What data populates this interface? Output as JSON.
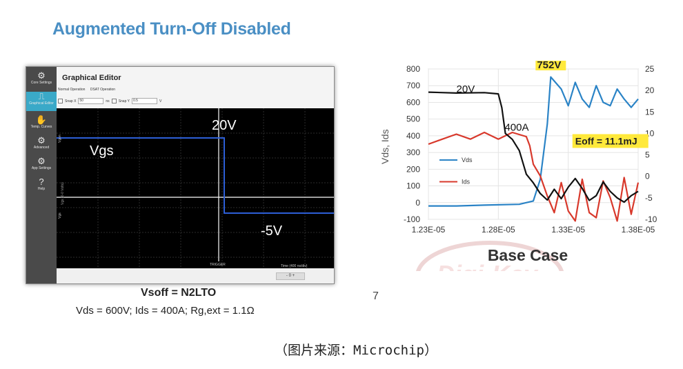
{
  "slide": {
    "title": "Augmented Turn-Off Disabled",
    "caption_main": "Vsoff = N2LTO",
    "caption_sub": "Vds = 600V; Ids = 400A; Rg,ext = 1.1Ω",
    "page_number": "7",
    "source_note": "（图片来源：Microchip）"
  },
  "editor": {
    "title": "Graphical Editor",
    "sidebar": [
      {
        "icon": "gear-icon",
        "glyph": "⚙",
        "label": "Core Settings"
      },
      {
        "icon": "waveform-icon",
        "glyph": "⎍",
        "label": "Graphical Editor",
        "active": true
      },
      {
        "icon": "curves-icon",
        "glyph": "✋",
        "label": "Temp. Curves"
      },
      {
        "icon": "advanced-icon",
        "glyph": "⚙",
        "label": "Advanced"
      },
      {
        "icon": "app-settings-icon",
        "glyph": "⚙",
        "label": "App Settings"
      },
      {
        "icon": "help-icon",
        "glyph": "?",
        "label": "Help"
      }
    ],
    "tabs": [
      "Normal Operation",
      "DSAT Operation"
    ],
    "snap_x_label": "Snap X",
    "snap_x_value": "50",
    "snap_x_unit": "ns",
    "snap_y_label": "Snap Y",
    "snap_y_value": "0.5",
    "snap_y_unit": "V",
    "plot": {
      "y_axis_label": "Vgs (0-0 Volts)",
      "y_tick_top": "Vgon",
      "y_tick_bottom": "Vgs",
      "trigger_label": "TRIGGER",
      "x_axis_label": "Time (400 ns/div)",
      "label_vgs": "Vgs",
      "label_high": "20V",
      "label_low": "-5V",
      "high_level_v": 20,
      "low_level_v": -5
    },
    "footer_control": "- 0 +"
  },
  "chart_data": {
    "type": "line",
    "title": "Base Case",
    "ylabel_left": "Vds, Ids",
    "x_ticks": [
      "1.23E-05",
      "1.28E-05",
      "1.33E-05",
      "1.38E-05"
    ],
    "xlim": [
      1.23e-05,
      1.38e-05
    ],
    "ylim_left": [
      -100,
      800
    ],
    "ylim_right": [
      -10,
      25
    ],
    "y_ticks_left": [
      "800",
      "700",
      "600",
      "500",
      "400",
      "300",
      "200",
      "100",
      "0",
      "-100"
    ],
    "y_ticks_right": [
      "25",
      "20",
      "15",
      "10",
      "5",
      "0",
      "-5",
      "-10"
    ],
    "legend": [
      "Vds",
      "Ids"
    ],
    "legend_position": "middle-left",
    "annotations": {
      "peak": "752V",
      "gate": "20V",
      "current": "400A",
      "energy": "Eoff = 11.1mJ"
    },
    "colors": {
      "vds": "#2a83c6",
      "ids": "#d8382b",
      "vgs": "#111111",
      "highlight": "#ffe93b"
    },
    "series": [
      {
        "name": "Vds",
        "axis": "left",
        "x": [
          1.23e-05,
          1.25e-05,
          1.27e-05,
          1.295e-05,
          1.305e-05,
          1.31e-05,
          1.315e-05,
          1.3175e-05,
          1.325e-05,
          1.33e-05,
          1.335e-05,
          1.34e-05,
          1.345e-05,
          1.35e-05,
          1.355e-05,
          1.36e-05,
          1.365e-05,
          1.37e-05,
          1.375e-05,
          1.38e-05
        ],
        "y": [
          -20,
          -20,
          -15,
          -10,
          10,
          140,
          470,
          752,
          680,
          580,
          720,
          620,
          570,
          700,
          600,
          580,
          680,
          620,
          570,
          620
        ]
      },
      {
        "name": "Ids",
        "axis": "left",
        "x": [
          1.23e-05,
          1.24e-05,
          1.25e-05,
          1.26e-05,
          1.27e-05,
          1.28e-05,
          1.29e-05,
          1.3e-05,
          1.3025e-05,
          1.305e-05,
          1.31e-05,
          1.315e-05,
          1.32e-05,
          1.325e-05,
          1.33e-05,
          1.335e-05,
          1.34e-05,
          1.345e-05,
          1.35e-05,
          1.355e-05,
          1.36e-05,
          1.365e-05,
          1.37e-05,
          1.375e-05,
          1.38e-05
        ],
        "y": [
          350,
          380,
          410,
          380,
          420,
          380,
          420,
          395,
          340,
          230,
          160,
          40,
          -60,
          120,
          -50,
          -110,
          140,
          -60,
          -90,
          130,
          30,
          -110,
          150,
          -70,
          120
        ]
      },
      {
        "name": "Vgs",
        "axis": "right",
        "x": [
          1.23e-05,
          1.25e-05,
          1.27e-05,
          1.28e-05,
          1.2825e-05,
          1.285e-05,
          1.29e-05,
          1.295e-05,
          1.3e-05,
          1.305e-05,
          1.31e-05,
          1.315e-05,
          1.32e-05,
          1.325e-05,
          1.33e-05,
          1.335e-05,
          1.34e-05,
          1.345e-05,
          1.35e-05,
          1.355e-05,
          1.36e-05,
          1.365e-05,
          1.37e-05,
          1.375e-05,
          1.38e-05
        ],
        "y": [
          19.6,
          19.4,
          19.5,
          19.2,
          16,
          10,
          8.6,
          6,
          0.5,
          -1.5,
          -4,
          -5.5,
          -3,
          -5.2,
          -2.5,
          -0.5,
          -2.8,
          -5.6,
          -4.5,
          -1.3,
          -3.5,
          -5,
          -6,
          -4.5,
          -3.5
        ]
      }
    ]
  }
}
